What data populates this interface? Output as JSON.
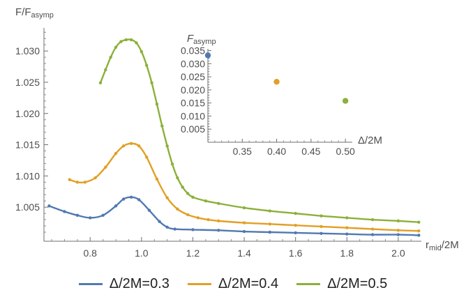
{
  "chart_data": [
    {
      "type": "line",
      "ylabel": "F/F",
      "ylabel_sub": "asymp",
      "xlabel": "r",
      "xlabel_sub": "mid",
      "xlabel_suffix": "/2M",
      "xlim": [
        0.62,
        2.09
      ],
      "ylim": [
        0.99955,
        1.0337
      ],
      "xticks": [
        0.8,
        1.0,
        1.2,
        1.4,
        1.6,
        1.8,
        2.0
      ],
      "xtick_labels": [
        "0.8",
        "1.0",
        "1.2",
        "1.4",
        "1.6",
        "1.8",
        "2.0"
      ],
      "yticks": [
        1.005,
        1.01,
        1.015,
        1.02,
        1.025,
        1.03
      ],
      "ytick_labels": [
        "1.005",
        "1.010",
        "1.015",
        "1.020",
        "1.025",
        "1.030"
      ],
      "legend_position": "bottom",
      "series": [
        {
          "name": "Δ/2M=0.3",
          "color": "#5079b1",
          "x": [
            0.64,
            0.7,
            0.75,
            0.8,
            0.85,
            0.9,
            0.93,
            0.96,
            0.99,
            1.03,
            1.07,
            1.1,
            1.13,
            1.2,
            1.3,
            1.4,
            1.5,
            1.6,
            1.7,
            1.8,
            1.9,
            2.0,
            2.08
          ],
          "y": [
            1.0052,
            1.0043,
            1.0037,
            1.0033,
            1.0037,
            1.0052,
            1.0063,
            1.0066,
            1.0062,
            1.0045,
            1.0027,
            1.0018,
            1.0015,
            1.0014,
            1.0013,
            1.0011,
            1.001,
            1.0009,
            1.0008,
            1.0007,
            1.0006,
            1.0006,
            1.0005
          ]
        },
        {
          "name": "Δ/2M=0.4",
          "color": "#e29f26",
          "x": [
            0.72,
            0.75,
            0.78,
            0.82,
            0.86,
            0.9,
            0.93,
            0.96,
            0.99,
            1.02,
            1.06,
            1.1,
            1.14,
            1.18,
            1.22,
            1.26,
            1.3,
            1.4,
            1.5,
            1.6,
            1.7,
            1.8,
            1.9,
            2.0,
            2.08
          ],
          "y": [
            1.0094,
            1.009,
            1.009,
            1.0097,
            1.0114,
            1.0136,
            1.0148,
            1.0152,
            1.0148,
            1.013,
            1.0095,
            1.0065,
            1.0047,
            1.0038,
            1.0033,
            1.003,
            1.0028,
            1.0025,
            1.0023,
            1.0021,
            1.0019,
            1.0017,
            1.0015,
            1.0013,
            1.0012
          ]
        },
        {
          "name": "Δ/2M=0.5",
          "color": "#8cb03a",
          "x": [
            0.84,
            0.86,
            0.88,
            0.9,
            0.92,
            0.94,
            0.96,
            0.98,
            1.0,
            1.02,
            1.04,
            1.06,
            1.08,
            1.1,
            1.12,
            1.14,
            1.16,
            1.18,
            1.2,
            1.25,
            1.3,
            1.4,
            1.5,
            1.6,
            1.7,
            1.8,
            1.9,
            2.0,
            2.08
          ],
          "y": [
            1.0249,
            1.027,
            1.029,
            1.0306,
            1.0315,
            1.0318,
            1.0318,
            1.0313,
            1.0299,
            1.0277,
            1.0249,
            1.0215,
            1.018,
            1.0148,
            1.0119,
            1.0097,
            1.0082,
            1.0072,
            1.0066,
            1.006,
            1.0056,
            1.0049,
            1.0044,
            1.004,
            1.0036,
            1.0033,
            1.003,
            1.0028,
            1.0026
          ]
        }
      ]
    },
    {
      "type": "scatter",
      "ylabel": "F",
      "ylabel_sub": "asymp",
      "xlabel": "Δ/2M",
      "xlim": [
        0.3,
        0.51
      ],
      "ylim": [
        0.0,
        0.0357
      ],
      "xticks": [
        0.35,
        0.4,
        0.45,
        0.5
      ],
      "xtick_labels": [
        "0.35",
        "0.40",
        "0.45",
        "0.50"
      ],
      "yticks": [
        0.005,
        0.01,
        0.015,
        0.02,
        0.025,
        0.03,
        0.035
      ],
      "ytick_labels": [
        "0.005",
        "0.010",
        "0.015",
        "0.020",
        "0.025",
        "0.030",
        "0.035"
      ],
      "points": [
        {
          "x": 0.3,
          "y": 0.0332,
          "color": "#5079b1"
        },
        {
          "x": 0.4,
          "y": 0.0231,
          "color": "#e29f26"
        },
        {
          "x": 0.5,
          "y": 0.0158,
          "color": "#8cb03a"
        }
      ]
    }
  ],
  "legend": [
    {
      "label": "Δ/2M=0.3",
      "color": "#5079b1"
    },
    {
      "label": "Δ/2M=0.4",
      "color": "#e29f26"
    },
    {
      "label": "Δ/2M=0.5",
      "color": "#8cb03a"
    }
  ]
}
